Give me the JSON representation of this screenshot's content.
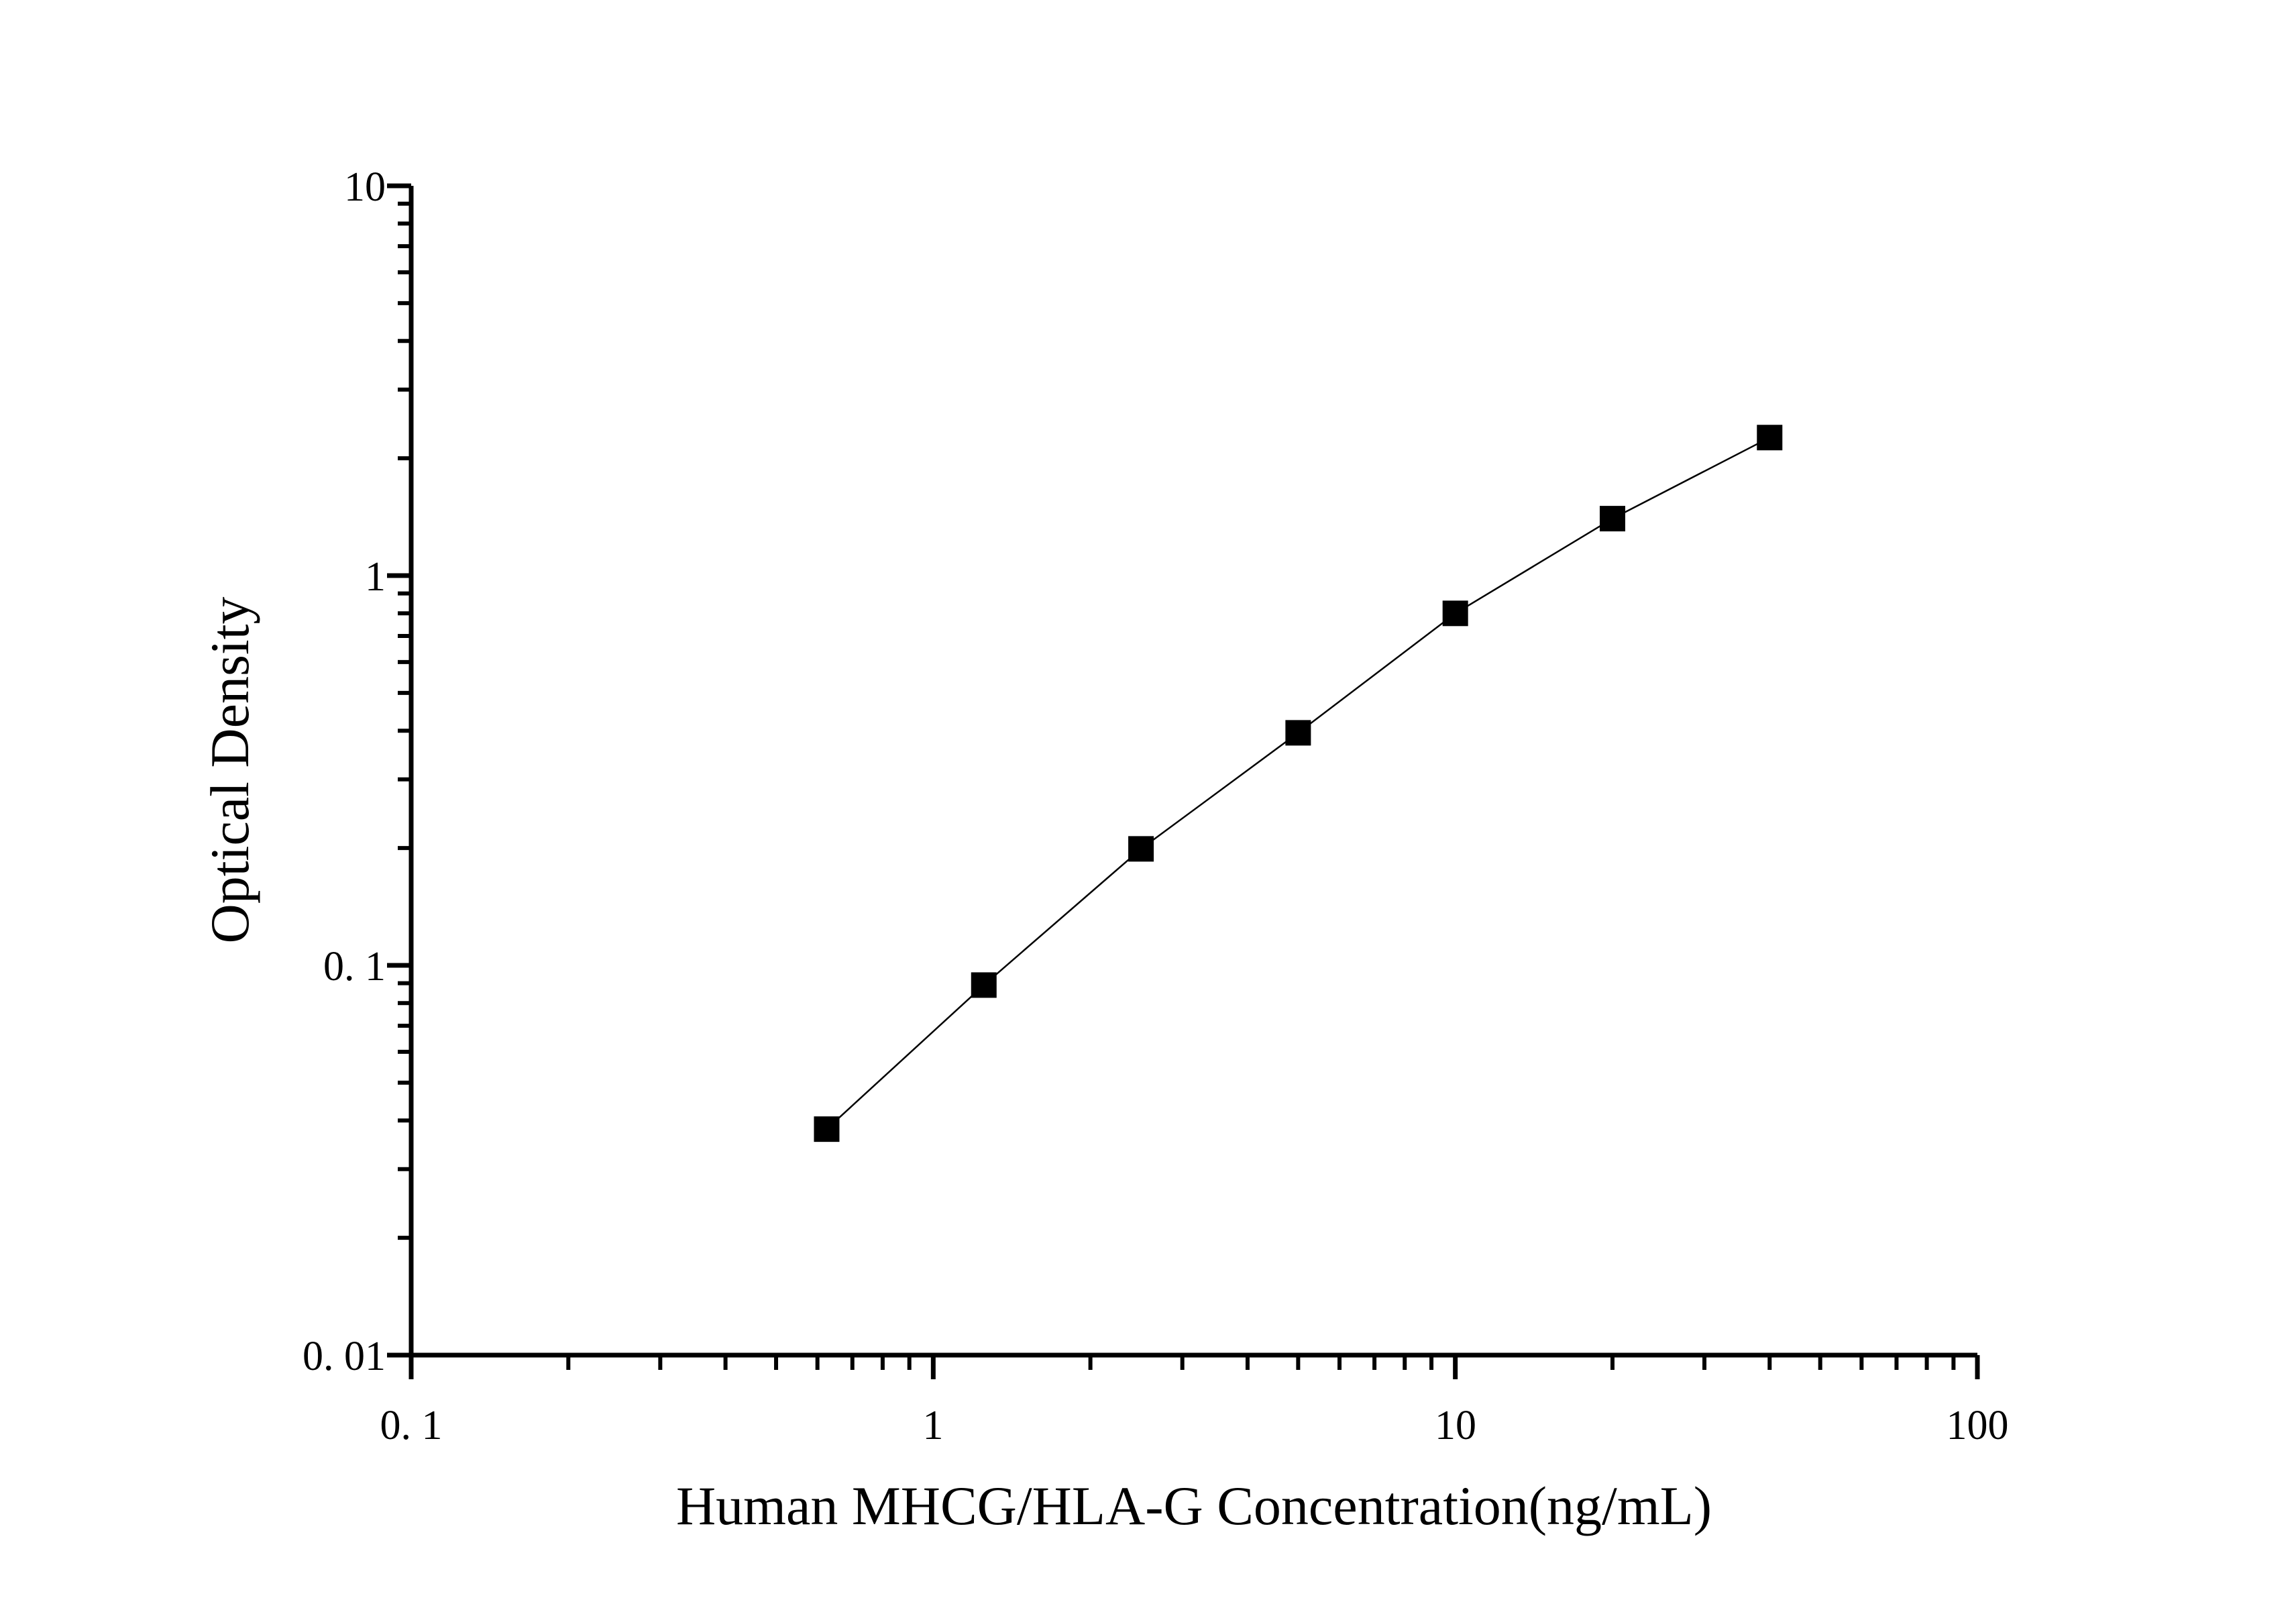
{
  "chart_data": {
    "type": "line",
    "title": "",
    "xlabel": "Human MHCG/HLA-G Concentration(ng/mL)",
    "ylabel": "Optical Density",
    "xscale": "log",
    "yscale": "log",
    "xlim": [
      0.1,
      100
    ],
    "ylim": [
      0.01,
      10
    ],
    "x_tick_labels": [
      "0. 1",
      "1",
      "10",
      "100"
    ],
    "y_tick_labels": [
      "0. 01",
      "0. 1",
      "1",
      "10"
    ],
    "grid": false,
    "legend": "none",
    "marker": "square",
    "color": "#000000",
    "series": [
      {
        "x": [
          0.625,
          1.25,
          2.5,
          5,
          10,
          20,
          40
        ],
        "y": [
          0.038,
          0.089,
          0.199,
          0.395,
          0.8,
          1.4,
          2.26
        ]
      }
    ]
  }
}
